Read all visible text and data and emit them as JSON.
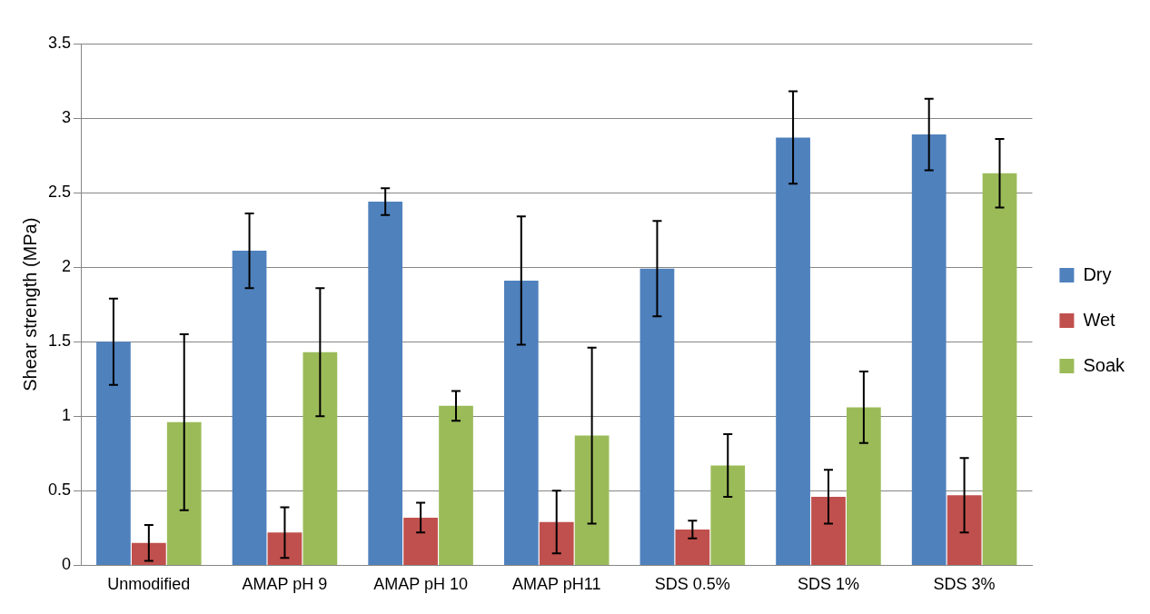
{
  "chart_data": {
    "type": "bar",
    "ylabel": "Shear strength (MPa)",
    "categories": [
      "Unmodified",
      "AMAP pH 9",
      "AMAP pH 10",
      "AMAP pH11",
      "SDS 0.5%",
      "SDS 1%",
      "SDS 3%"
    ],
    "series": [
      {
        "name": "Dry",
        "color": "#4f81bd",
        "values": [
          1.5,
          2.11,
          2.44,
          1.91,
          1.99,
          2.87,
          2.89
        ],
        "errors": [
          0.29,
          0.25,
          0.09,
          0.43,
          0.32,
          0.31,
          0.24
        ]
      },
      {
        "name": "Wet",
        "color": "#c0504d",
        "values": [
          0.15,
          0.22,
          0.32,
          0.29,
          0.24,
          0.46,
          0.47
        ],
        "errors": [
          0.12,
          0.17,
          0.1,
          0.21,
          0.06,
          0.18,
          0.25
        ]
      },
      {
        "name": "Soak",
        "color": "#9bbb59",
        "values": [
          0.96,
          1.43,
          1.07,
          0.87,
          0.67,
          1.06,
          2.63
        ],
        "errors": [
          0.59,
          0.43,
          0.1,
          0.59,
          0.21,
          0.24,
          0.23
        ]
      }
    ],
    "ylim": [
      0,
      3.5
    ],
    "yticks": [
      0,
      0.5,
      1,
      1.5,
      2,
      2.5,
      3,
      3.5
    ],
    "grid": "y",
    "legend": "right"
  }
}
